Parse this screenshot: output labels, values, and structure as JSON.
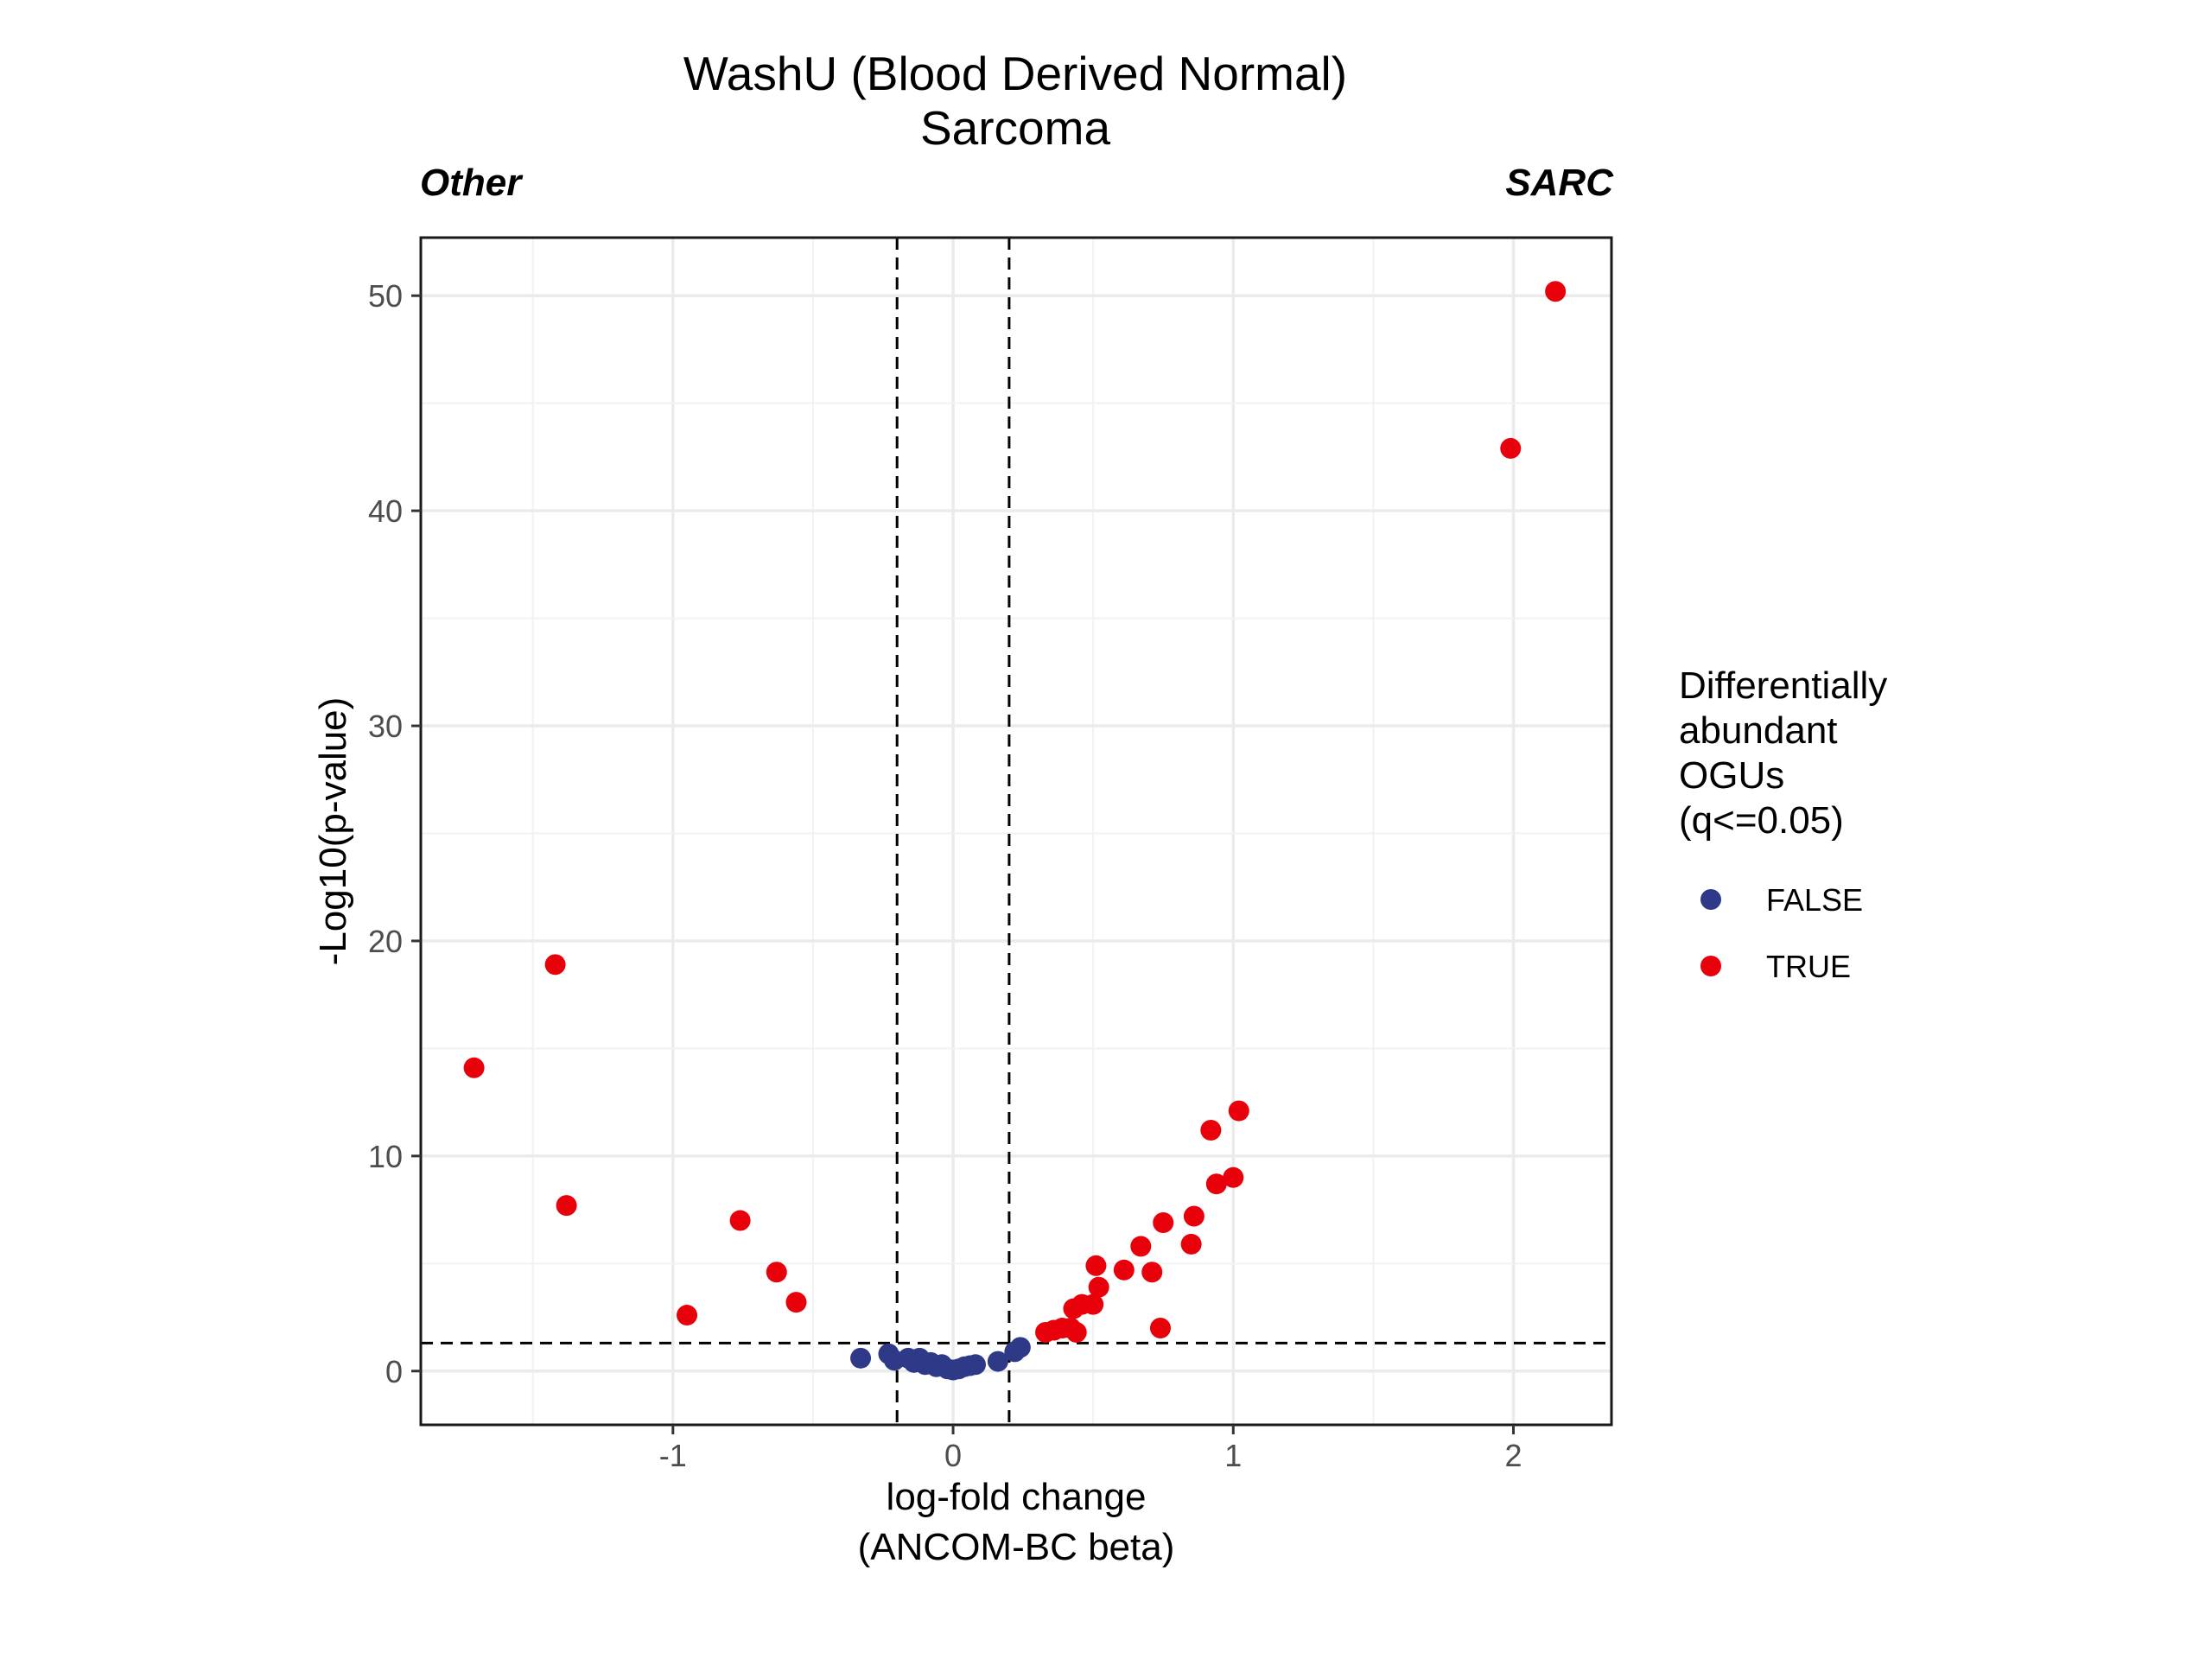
{
  "chart_data": {
    "type": "scatter",
    "title": "WashU (Blood Derived Normal)",
    "subtitle": "Sarcoma",
    "corner_left": "Other",
    "corner_right": "SARC",
    "xlabel": [
      "log-fold change",
      "(ANCOM-BC beta)"
    ],
    "ylabel": "-Log10(p-value)",
    "xlim": [
      -1.9,
      2.35
    ],
    "ylim": [
      -2.5,
      52.7
    ],
    "x_ticks": [
      -1,
      0,
      1,
      2
    ],
    "x_tick_labels": [
      "-1",
      "0",
      "1",
      "2"
    ],
    "y_ticks": [
      0,
      10,
      20,
      30,
      40,
      50
    ],
    "y_tick_labels": [
      "0",
      "10",
      "20",
      "30",
      "40",
      "50"
    ],
    "grid": true,
    "legend": {
      "title": [
        "Differentially",
        "abundant",
        "OGUs",
        "(q<=0.05)"
      ],
      "position": "right"
    },
    "reference_lines": {
      "vertical": [
        -0.2,
        0.2
      ],
      "horizontal": 1.3,
      "style": "dashed"
    },
    "series": [
      {
        "name": "FALSE",
        "color": "#2e3a87",
        "points": [
          [
            -0.33,
            0.6
          ],
          [
            -0.23,
            0.8
          ],
          [
            -0.21,
            0.5
          ],
          [
            -0.16,
            0.6
          ],
          [
            -0.14,
            0.4
          ],
          [
            -0.12,
            0.6
          ],
          [
            -0.1,
            0.3
          ],
          [
            -0.08,
            0.4
          ],
          [
            -0.06,
            0.2
          ],
          [
            -0.04,
            0.3
          ],
          [
            -0.02,
            0.1
          ],
          [
            0.0,
            0.05
          ],
          [
            0.02,
            0.1
          ],
          [
            0.04,
            0.2
          ],
          [
            0.06,
            0.25
          ],
          [
            0.08,
            0.3
          ],
          [
            0.16,
            0.45
          ],
          [
            0.22,
            0.9
          ],
          [
            0.24,
            1.1
          ]
        ]
      },
      {
        "name": "TRUE",
        "color": "#e8000b",
        "points": [
          [
            -1.71,
            14.1
          ],
          [
            -1.42,
            18.9
          ],
          [
            -1.38,
            7.7
          ],
          [
            -0.95,
            2.6
          ],
          [
            -0.76,
            7.0
          ],
          [
            -0.63,
            4.6
          ],
          [
            -0.56,
            3.2
          ],
          [
            0.33,
            1.8
          ],
          [
            0.36,
            1.9
          ],
          [
            0.39,
            2.0
          ],
          [
            0.42,
            2.0
          ],
          [
            0.43,
            2.9
          ],
          [
            0.44,
            1.8
          ],
          [
            0.46,
            3.1
          ],
          [
            0.5,
            3.1
          ],
          [
            0.51,
            4.9
          ],
          [
            0.52,
            3.9
          ],
          [
            0.61,
            4.7
          ],
          [
            0.67,
            5.8
          ],
          [
            0.71,
            4.6
          ],
          [
            0.74,
            2.0
          ],
          [
            0.75,
            6.9
          ],
          [
            0.85,
            5.9
          ],
          [
            0.86,
            7.2
          ],
          [
            0.92,
            11.2
          ],
          [
            0.94,
            8.7
          ],
          [
            1.0,
            9.0
          ],
          [
            1.02,
            12.1
          ],
          [
            1.99,
            42.9
          ],
          [
            2.15,
            50.2
          ]
        ]
      }
    ]
  }
}
